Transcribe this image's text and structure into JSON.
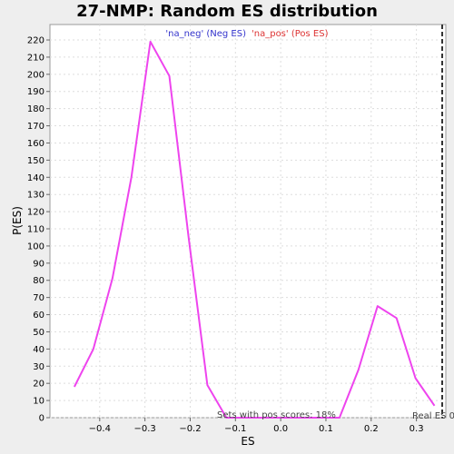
{
  "chart_data": {
    "type": "line",
    "title": "27-NMP: Random ES distribution",
    "xlabel": "ES",
    "ylabel": "P(ES)",
    "xlim": [
      -0.51,
      0.365
    ],
    "ylim": [
      0,
      229
    ],
    "x_ticks": [
      -0.4,
      -0.3,
      -0.2,
      -0.1,
      0.0,
      0.1,
      0.2,
      0.3
    ],
    "x_tick_labels": [
      "−0.4",
      "−0.3",
      "−0.2",
      "−0.1",
      "0.0",
      "0.1",
      "0.2",
      "0.3"
    ],
    "y_ticks": [
      0,
      10,
      20,
      30,
      40,
      50,
      60,
      70,
      80,
      90,
      100,
      110,
      120,
      130,
      140,
      150,
      160,
      170,
      180,
      190,
      200,
      210,
      220
    ],
    "grid": true,
    "legend_position": "top-center",
    "legend": [
      {
        "label": "'na_neg' (Neg ES)",
        "color": "#3333cc"
      },
      {
        "label": "'na_pos' (Pos ES)",
        "color": "#dd3333"
      }
    ],
    "series": [
      {
        "color": "#ee44ee",
        "points": [
          [
            -0.456,
            18
          ],
          [
            -0.414,
            40
          ],
          [
            -0.372,
            81
          ],
          [
            -0.33,
            140
          ],
          [
            -0.288,
            219
          ],
          [
            -0.246,
            199
          ],
          [
            -0.204,
            106
          ],
          [
            -0.162,
            19
          ],
          [
            -0.12,
            0
          ],
          [
            0.0,
            0
          ],
          [
            0.13,
            0
          ],
          [
            0.172,
            28
          ],
          [
            0.214,
            65
          ],
          [
            0.256,
            58
          ],
          [
            0.298,
            23
          ],
          [
            0.34,
            7
          ]
        ]
      }
    ],
    "real_es": {
      "x": 0.357,
      "label": "Real ES 0",
      "color": "#333333"
    },
    "annotation": "Sets with pos scores: 18%"
  }
}
